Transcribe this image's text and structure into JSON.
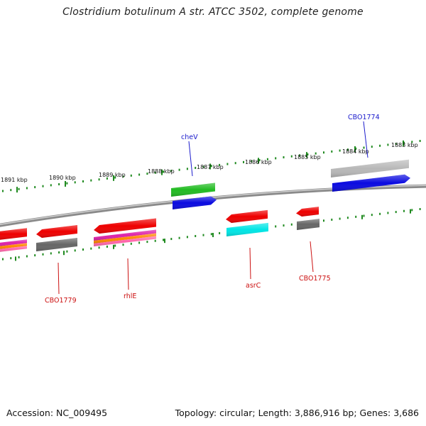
{
  "title": "Clostridium botulinum A str. ATCC 3502, complete genome",
  "footer": {
    "accession": "Accession: NC_009495",
    "summary": "Topology: circular; Length: 3,886,916 bp; Genes: 3,686"
  },
  "colors": {
    "backbone": "#8a8a8a",
    "tick": "#1f8a1f",
    "label_forward": "#1a1acc",
    "label_reverse": "#cc1111",
    "red": "#ee0000",
    "blue": "#0a0ae0",
    "green": "#22bb22",
    "cyan": "#00e5e5",
    "gray_dark": "#666666",
    "gray_light": "#b8b8b8",
    "magenta": "#dd22aa",
    "orange": "#ff8800"
  },
  "scale": {
    "tick_labels": [
      "1891 kbp",
      "1890 kbp",
      "1889 kbp",
      "1888 kbp",
      "1887 kbp",
      "1886 kbp",
      "1885 kbp",
      "1884 kbp",
      "1883 kbp"
    ]
  },
  "genes": [
    {
      "name": "cheV",
      "strand": "forward"
    },
    {
      "name": "CBO1774",
      "strand": "forward"
    },
    {
      "name": "CBO1779",
      "strand": "reverse"
    },
    {
      "name": "rhlE",
      "strand": "reverse"
    },
    {
      "name": "asrC",
      "strand": "reverse"
    },
    {
      "name": "CBO1775",
      "strand": "reverse"
    }
  ]
}
